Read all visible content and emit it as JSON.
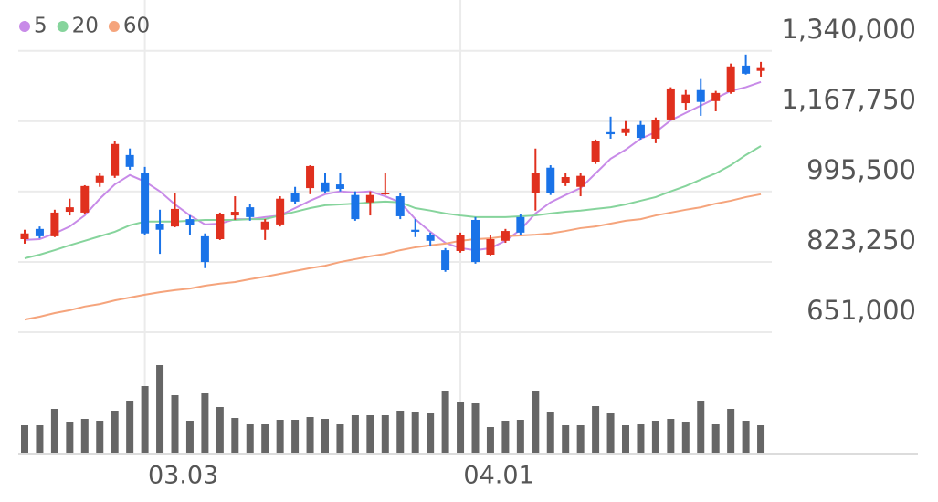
{
  "chart_data": {
    "type": "candlestick",
    "categories": [
      null,
      null,
      null,
      null,
      null,
      null,
      null,
      null,
      "03.03",
      null,
      null,
      null,
      null,
      null,
      null,
      null,
      null,
      null,
      null,
      null,
      null,
      null,
      null,
      null,
      null,
      null,
      null,
      null,
      null,
      "04.01",
      null,
      null,
      null,
      null,
      null,
      null,
      null,
      null,
      null,
      null,
      null,
      null,
      null,
      null,
      null,
      null,
      null,
      null,
      null,
      null
    ],
    "open": [
      879000,
      904000,
      886000,
      946000,
      944000,
      1018000,
      1034000,
      1085000,
      1040000,
      917000,
      910000,
      928000,
      886000,
      879000,
      937000,
      957000,
      902000,
      915000,
      993000,
      1004000,
      1018000,
      1013000,
      987000,
      969000,
      989000,
      984000,
      902000,
      888000,
      852000,
      850000,
      926000,
      841000,
      875000,
      933000,
      991000,
      1054000,
      1016000,
      1007000,
      1067000,
      1141000,
      1139000,
      1159000,
      1125000,
      1172000,
      1212000,
      1244000,
      1217000,
      1239000,
      1304000,
      1291000
    ],
    "high": [
      902000,
      910000,
      951000,
      978000,
      1011000,
      1040000,
      1119000,
      1101000,
      1056000,
      951000,
      991000,
      937000,
      893000,
      944000,
      984000,
      964000,
      928000,
      984000,
      1007000,
      1060000,
      1040000,
      1042000,
      996000,
      996000,
      1040000,
      993000,
      928000,
      895000,
      857000,
      895000,
      933000,
      888000,
      904000,
      940000,
      1101000,
      1060000,
      1042000,
      1042000,
      1123000,
      1179000,
      1168000,
      1168000,
      1177000,
      1251000,
      1244000,
      1271000,
      1242000,
      1309000,
      1331000,
      1313000
    ],
    "low": [
      868000,
      881000,
      884000,
      937000,
      940000,
      1007000,
      1029000,
      1049000,
      890000,
      843000,
      908000,
      888000,
      808000,
      877000,
      926000,
      924000,
      877000,
      910000,
      964000,
      989000,
      991000,
      996000,
      924000,
      937000,
      987000,
      928000,
      884000,
      861000,
      799000,
      846000,
      819000,
      839000,
      870000,
      888000,
      949000,
      987000,
      1009000,
      984000,
      1063000,
      1125000,
      1132000,
      1123000,
      1114000,
      1170000,
      1195000,
      1181000,
      1192000,
      1235000,
      1282000,
      1277000
    ],
    "close": [
      893000,
      886000,
      944000,
      957000,
      1009000,
      1034000,
      1112000,
      1056000,
      893000,
      902000,
      953000,
      913000,
      823000,
      940000,
      946000,
      933000,
      922000,
      978000,
      971000,
      1058000,
      996000,
      1002000,
      928000,
      987000,
      993000,
      935000,
      897000,
      875000,
      803000,
      888000,
      823000,
      879000,
      899000,
      895000,
      1042000,
      993000,
      1031000,
      1034000,
      1119000,
      1136000,
      1150000,
      1127000,
      1170000,
      1248000,
      1233000,
      1215000,
      1237000,
      1302000,
      1284000,
      1300000
    ],
    "up_color": "#e0301e",
    "down_color": "#1a73e8",
    "series": [
      {
        "name": "5",
        "color": "#c88be8",
        "values": [
          877000,
          879000,
          893000,
          910000,
          937000,
          978000,
          1013000,
          1036000,
          1020000,
          996000,
          964000,
          937000,
          915000,
          917000,
          928000,
          928000,
          933000,
          937000,
          955000,
          973000,
          989000,
          996000,
          993000,
          996000,
          984000,
          969000,
          928000,
          897000,
          870000,
          857000,
          852000,
          857000,
          875000,
          902000,
          942000,
          969000,
          987000,
          1004000,
          1040000,
          1076000,
          1098000,
          1125000,
          1141000,
          1170000,
          1188000,
          1206000,
          1224000,
          1242000,
          1251000,
          1264000
        ]
      },
      {
        "name": "20",
        "color": "#86d49c",
        "values": [
          832000,
          841000,
          852000,
          864000,
          875000,
          886000,
          897000,
          913000,
          922000,
          922000,
          922000,
          924000,
          926000,
          926000,
          926000,
          928000,
          928000,
          937000,
          946000,
          955000,
          962000,
          964000,
          966000,
          969000,
          971000,
          969000,
          955000,
          949000,
          942000,
          937000,
          933000,
          933000,
          933000,
          935000,
          937000,
          942000,
          946000,
          949000,
          953000,
          957000,
          964000,
          973000,
          982000,
          996000,
          1009000,
          1025000,
          1040000,
          1060000,
          1085000,
          1107000
        ]
      },
      {
        "name": "60",
        "color": "#f5a47c",
        "values": [
          682000,
          689000,
          698000,
          705000,
          714000,
          720000,
          729000,
          736000,
          743000,
          749000,
          754000,
          758000,
          765000,
          770000,
          774000,
          781000,
          787000,
          794000,
          801000,
          808000,
          814000,
          823000,
          830000,
          837000,
          843000,
          852000,
          859000,
          864000,
          868000,
          875000,
          879000,
          881000,
          886000,
          888000,
          890000,
          893000,
          899000,
          906000,
          910000,
          917000,
          924000,
          928000,
          937000,
          944000,
          951000,
          957000,
          966000,
          973000,
          982000,
          989000
        ]
      }
    ],
    "ylim": [
      651000,
      1420000
    ],
    "yticks": [
      {
        "value": 651000,
        "label": "651,000"
      },
      {
        "value": 823250,
        "label": "823,250"
      },
      {
        "value": 995500,
        "label": "995,500"
      },
      {
        "value": 1167750,
        "label": "1,167,750"
      },
      {
        "value": 1340000,
        "label": "1,340,000"
      }
    ],
    "grid": true,
    "volume": {
      "color": "#666666",
      "ylim": [
        0,
        100
      ],
      "values": [
        30,
        30,
        48,
        34,
        37,
        35,
        46,
        57,
        73,
        96,
        63,
        35,
        65,
        50,
        38,
        31,
        32,
        36,
        36,
        39,
        37,
        32,
        41,
        41,
        41,
        46,
        45,
        44,
        68,
        56,
        55,
        28,
        35,
        36,
        68,
        45,
        30,
        30,
        51,
        43,
        30,
        32,
        35,
        37,
        34,
        57,
        31,
        48,
        35,
        30
      ]
    },
    "legend": "top-left"
  }
}
